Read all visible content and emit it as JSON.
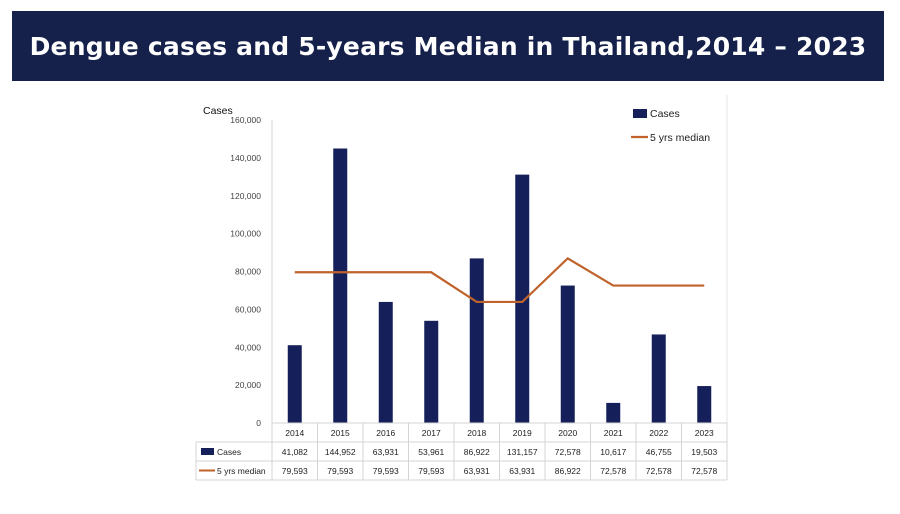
{
  "title": "Dengue cases and 5-years Median in Thailand,2014 – 2023",
  "colors": {
    "title_bg": "#15214a",
    "bars": "#15205a",
    "line": "#c0622b",
    "grid": "#d4d4d4"
  },
  "chart_data": {
    "type": "bar",
    "ylabel": "Cases",
    "ylim": [
      0,
      160000
    ],
    "yticks": [
      "0",
      "20,000",
      "40,000",
      "60,000",
      "80,000",
      "100,000",
      "120,000",
      "140,000",
      "160,000"
    ],
    "ytick_values": [
      0,
      20000,
      40000,
      60000,
      80000,
      100000,
      120000,
      140000,
      160000
    ],
    "categories": [
      "2014",
      "2015",
      "2016",
      "2017",
      "2018",
      "2019",
      "2020",
      "2021",
      "2022",
      "2023"
    ],
    "legend_position": "top-right",
    "series": [
      {
        "name": "Cases",
        "kind": "bar",
        "values": [
          41082,
          144952,
          63931,
          53961,
          86922,
          131157,
          72578,
          10617,
          46755,
          19503
        ],
        "labels": [
          "41,082",
          "144,952",
          "63,931",
          "53,961",
          "86,922",
          "131,157",
          "72,578",
          "10,617",
          "46,755",
          "19,503"
        ]
      },
      {
        "name": "5 yrs median",
        "kind": "line",
        "values": [
          79593,
          79593,
          79593,
          79593,
          63931,
          63931,
          86922,
          72578,
          72578,
          72578
        ],
        "labels": [
          "79,593",
          "79,593",
          "79,593",
          "79,593",
          "63,931",
          "63,931",
          "86,922",
          "72,578",
          "72,578",
          "72,578"
        ]
      }
    ]
  }
}
